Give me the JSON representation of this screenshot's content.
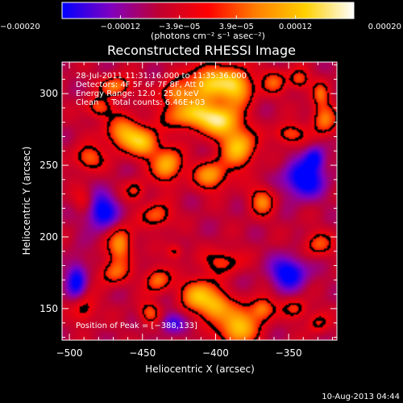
{
  "chart_data": {
    "type": "heatmap",
    "title": "Reconstructed RHESSI Image",
    "xlabel": "Heliocentric X (arcsec)",
    "ylabel": "Heliocentric Y (arcsec)",
    "xlim": [
      -505,
      -317
    ],
    "ylim": [
      128,
      322
    ],
    "x_ticks": [
      -500,
      -450,
      -400,
      -350
    ],
    "x_tick_labels": [
      "−500",
      "−450",
      "−400",
      "−350"
    ],
    "y_ticks": [
      150,
      200,
      250,
      300
    ],
    "y_tick_labels": [
      "150",
      "200",
      "250",
      "300"
    ],
    "colorbar": {
      "range": [
        -0.0002,
        0.0002
      ],
      "ticks": [
        -0.0002,
        -0.00012,
        -3.9e-05,
        3.9e-05,
        0.00012,
        0.0002
      ],
      "tick_labels": [
        "−0.00020",
        "−0.00012",
        "−3.9e−05",
        "3.9e−05",
        "0.00012",
        "0.00020"
      ],
      "units_label": "(photons cm⁻² s⁻¹ asec⁻²)",
      "colors": [
        "#0000ff",
        "#8000c0",
        "#c00030",
        "#ff0000",
        "#ff8000",
        "#ffd000",
        "#ffffff"
      ]
    },
    "annotations": [
      "28-Jul-2011 11:31:16.000 to 11:35:36.000",
      "Detectors: 4F 5F 6F 7F 8F, Att 0",
      "Energy Range: 12.0 - 25.0 keV",
      "Clean     Total counts: 6.46E+03"
    ],
    "peak_text": "Position of Peak = [−388,133]",
    "peak": {
      "x": -388,
      "y": 133
    },
    "blobs": [
      {
        "x": -405,
        "y": 307,
        "sx": 10,
        "sy": 9,
        "a": 1.0
      },
      {
        "x": -385,
        "y": 305,
        "sx": 8,
        "sy": 9,
        "a": 0.9
      },
      {
        "x": -428,
        "y": 300,
        "sx": 7,
        "sy": 6,
        "a": 0.65
      },
      {
        "x": -415,
        "y": 285,
        "sx": 13,
        "sy": 7,
        "a": 0.95
      },
      {
        "x": -395,
        "y": 280,
        "sx": 9,
        "sy": 8,
        "a": 0.85
      },
      {
        "x": -384,
        "y": 262,
        "sx": 8,
        "sy": 9,
        "a": 0.95
      },
      {
        "x": -403,
        "y": 243,
        "sx": 8,
        "sy": 7,
        "a": 0.8
      },
      {
        "x": -468,
        "y": 305,
        "sx": 7,
        "sy": 5,
        "a": 0.7
      },
      {
        "x": -480,
        "y": 290,
        "sx": 6,
        "sy": 5,
        "a": 0.55
      },
      {
        "x": -462,
        "y": 272,
        "sx": 9,
        "sy": 8,
        "a": 0.85
      },
      {
        "x": -448,
        "y": 265,
        "sx": 7,
        "sy": 7,
        "a": 0.75
      },
      {
        "x": -487,
        "y": 255,
        "sx": 7,
        "sy": 6,
        "a": 0.6
      },
      {
        "x": -433,
        "y": 250,
        "sx": 7,
        "sy": 8,
        "a": 0.9
      },
      {
        "x": -455,
        "y": 232,
        "sx": 5,
        "sy": 5,
        "a": 0.45
      },
      {
        "x": -360,
        "y": 308,
        "sx": 6,
        "sy": 6,
        "a": 0.5
      },
      {
        "x": -343,
        "y": 310,
        "sx": 5,
        "sy": 5,
        "a": 0.55
      },
      {
        "x": -350,
        "y": 272,
        "sx": 7,
        "sy": 5,
        "a": 0.55
      },
      {
        "x": -326,
        "y": 282,
        "sx": 6,
        "sy": 8,
        "a": 0.65
      },
      {
        "x": -328,
        "y": 300,
        "sx": 4,
        "sy": 6,
        "a": 0.5
      },
      {
        "x": -368,
        "y": 225,
        "sx": 6,
        "sy": 7,
        "a": 0.65
      },
      {
        "x": -440,
        "y": 215,
        "sx": 7,
        "sy": 6,
        "a": 0.6
      },
      {
        "x": -465,
        "y": 195,
        "sx": 6,
        "sy": 9,
        "a": 0.75
      },
      {
        "x": -470,
        "y": 175,
        "sx": 7,
        "sy": 6,
        "a": 0.55
      },
      {
        "x": -428,
        "y": 190,
        "sx": 4,
        "sy": 4,
        "a": 0.4
      },
      {
        "x": -395,
        "y": 183,
        "sx": 9,
        "sy": 6,
        "a": 0.5
      },
      {
        "x": -412,
        "y": 160,
        "sx": 8,
        "sy": 8,
        "a": 0.85
      },
      {
        "x": -400,
        "y": 152,
        "sx": 7,
        "sy": 7,
        "a": 0.8
      },
      {
        "x": -385,
        "y": 137,
        "sx": 9,
        "sy": 9,
        "a": 1.0
      },
      {
        "x": -368,
        "y": 150,
        "sx": 6,
        "sy": 6,
        "a": 0.7
      },
      {
        "x": -440,
        "y": 170,
        "sx": 6,
        "sy": 6,
        "a": 0.65
      },
      {
        "x": -445,
        "y": 147,
        "sx": 5,
        "sy": 5,
        "a": 0.55
      },
      {
        "x": -490,
        "y": 150,
        "sx": 6,
        "sy": 7,
        "a": 0.45
      },
      {
        "x": -490,
        "y": 225,
        "sx": 5,
        "sy": 6,
        "a": 0.35
      },
      {
        "x": -330,
        "y": 195,
        "sx": 7,
        "sy": 6,
        "a": 0.5
      },
      {
        "x": -345,
        "y": 150,
        "sx": 6,
        "sy": 5,
        "a": 0.45
      },
      {
        "x": -330,
        "y": 140,
        "sx": 5,
        "sy": 5,
        "a": 0.4
      }
    ],
    "dips": [
      {
        "x": -478,
        "y": 218,
        "sx": 8,
        "sy": 9,
        "a": 0.75
      },
      {
        "x": -340,
        "y": 240,
        "sx": 10,
        "sy": 9,
        "a": 0.8
      },
      {
        "x": -350,
        "y": 175,
        "sx": 9,
        "sy": 8,
        "a": 0.75
      },
      {
        "x": -495,
        "y": 170,
        "sx": 5,
        "sy": 10,
        "a": 0.65
      },
      {
        "x": -430,
        "y": 140,
        "sx": 6,
        "sy": 5,
        "a": 0.5
      },
      {
        "x": -332,
        "y": 255,
        "sx": 5,
        "sy": 6,
        "a": 0.6
      }
    ]
  },
  "footer": {
    "date": "10-Aug-2013 04:44"
  }
}
